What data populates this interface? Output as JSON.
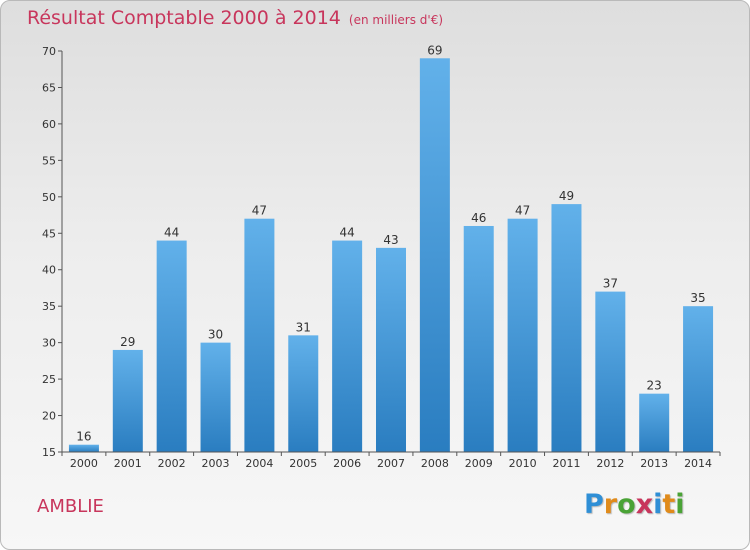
{
  "header": {
    "title": "Résultat Comptable 2000 à 2014",
    "unit": "(en milliers d'€)"
  },
  "footer": {
    "commune": "AMBLIE",
    "logo": [
      "P",
      "r",
      "o",
      "x",
      "i",
      "t",
      "i"
    ],
    "logo_colors": [
      "#2f8fd6",
      "#e08b1b",
      "#4aa336",
      "#c8365c",
      "#2f8fd6",
      "#e08b1b",
      "#4aa336"
    ]
  },
  "colors": {
    "title": "#c8365c",
    "bar_light": "#62b1ea",
    "bar_dark": "#2a7dc0",
    "axis": "#555555"
  },
  "chart_data": {
    "type": "bar",
    "title": "Résultat Comptable 2000 à 2014",
    "xlabel": "",
    "ylabel": "",
    "categories": [
      "2000",
      "2001",
      "2002",
      "2003",
      "2004",
      "2005",
      "2006",
      "2007",
      "2008",
      "2009",
      "2010",
      "2011",
      "2012",
      "2013",
      "2014"
    ],
    "values": [
      16,
      29,
      44,
      30,
      47,
      31,
      44,
      43,
      69,
      46,
      47,
      49,
      37,
      23,
      35
    ],
    "ylim": [
      15,
      70
    ],
    "yticks": [
      15,
      20,
      25,
      30,
      35,
      40,
      45,
      50,
      55,
      60,
      65,
      70
    ],
    "grid": false,
    "legend": "none"
  }
}
